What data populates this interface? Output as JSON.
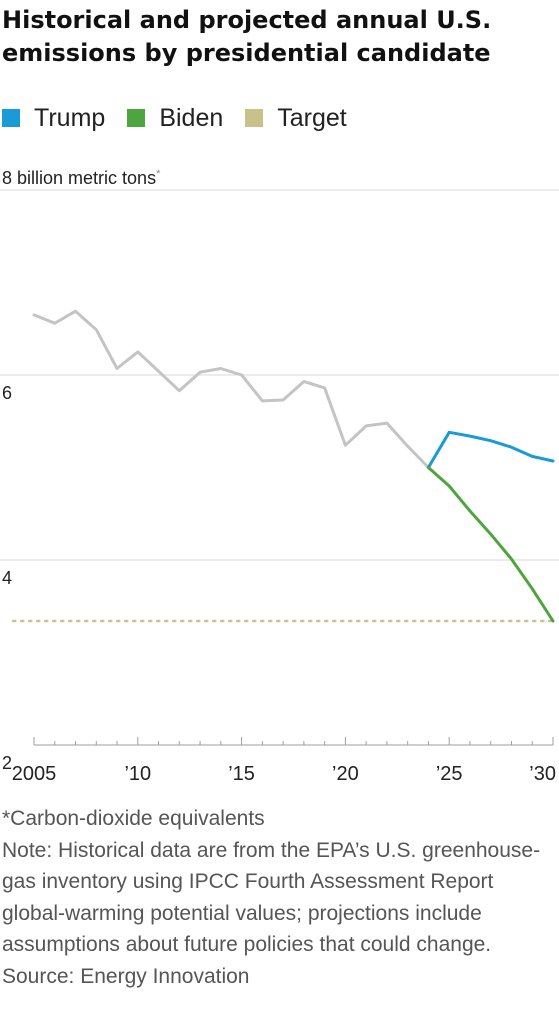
{
  "title": "Historical and projected annual U.S. emissions by presidential candidate",
  "unit_label": "8 billion metric tons",
  "unit_mark": "*",
  "legend": [
    {
      "label": "Trump",
      "color": "#1a9ad6"
    },
    {
      "label": "Biden",
      "color": "#4ea53f"
    },
    {
      "label": "Target",
      "color": "#c9c18a"
    }
  ],
  "notes": {
    "footnote": "*Carbon-dioxide equivalents",
    "note": "Note: Historical data are from the EPA’s U.S. greenhouse-gas inventory using IPCC Fourth Assessment Report global-warming potential values; projections include assumptions about future policies that could change.",
    "source": "Source: Energy Innovation"
  },
  "chart_data": {
    "type": "line",
    "xlim": [
      2005,
      2030
    ],
    "ylim": [
      2,
      8
    ],
    "y_ticks": [
      {
        "value": 2,
        "label": "2"
      },
      {
        "value": 4,
        "label": "4"
      },
      {
        "value": 6,
        "label": "6"
      },
      {
        "value": 8,
        "label": ""
      }
    ],
    "x_ticks": [
      {
        "value": 2005,
        "label": "2005"
      },
      {
        "value": 2010,
        "label": "’10"
      },
      {
        "value": 2015,
        "label": "’15"
      },
      {
        "value": 2020,
        "label": "’20"
      },
      {
        "value": 2025,
        "label": "’25"
      },
      {
        "value": 2030,
        "label": "’30"
      }
    ],
    "grid": true,
    "historical": {
      "color": "#c4c4c4",
      "x": [
        2005,
        2006,
        2007,
        2008,
        2009,
        2010,
        2011,
        2012,
        2013,
        2014,
        2015,
        2016,
        2017,
        2018,
        2019,
        2020,
        2021,
        2022,
        2023,
        2024
      ],
      "y": [
        6.65,
        6.56,
        6.69,
        6.49,
        6.07,
        6.25,
        6.04,
        5.83,
        6.03,
        6.07,
        6.0,
        5.72,
        5.73,
        5.93,
        5.86,
        5.24,
        5.45,
        5.48,
        5.23,
        5.0
      ]
    },
    "series": [
      {
        "name": "Trump",
        "color": "#1a9ad6",
        "x": [
          2024,
          2025,
          2026,
          2027,
          2028,
          2029,
          2030
        ],
        "y": [
          5.0,
          5.38,
          5.34,
          5.29,
          5.22,
          5.12,
          5.07
        ]
      },
      {
        "name": "Biden",
        "color": "#4ea53f",
        "x": [
          2024,
          2025,
          2026,
          2027,
          2028,
          2029,
          2030
        ],
        "y": [
          5.0,
          4.8,
          4.53,
          4.28,
          4.01,
          3.69,
          3.34
        ]
      }
    ],
    "target": {
      "name": "Target",
      "color": "#c9c18a",
      "value": 3.34,
      "x": [
        2004,
        2030
      ]
    }
  }
}
